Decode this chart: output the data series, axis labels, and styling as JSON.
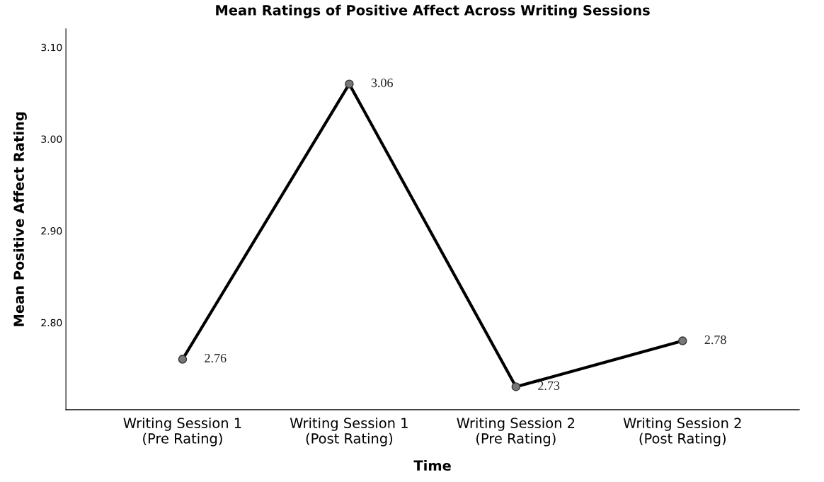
{
  "chart_data": {
    "type": "line",
    "title": "Mean Ratings of Positive Affect Across Writing Sessions",
    "xlabel": "Time",
    "ylabel": "Mean Positive Affect Rating",
    "categories": [
      "Writing Session 1\n(Pre Rating)",
      "Writing Session 1\n(Post Rating)",
      "Writing Session 2\n(Pre Rating)",
      "Writing Session 2\n(Post Rating)"
    ],
    "values": [
      2.76,
      3.06,
      2.73,
      2.78
    ],
    "color": "#000000",
    "marker": "circle",
    "line_style": "solid",
    "data_labels": true,
    "grid": false,
    "legend": false,
    "ylim": [
      2.705,
      3.12
    ],
    "yticks": [
      {
        "value": 2.8,
        "label": "2.80"
      },
      {
        "value": 2.9,
        "label": "2.90"
      },
      {
        "value": 3.0,
        "label": "3.00"
      },
      {
        "value": 3.1,
        "label": "3.10"
      }
    ]
  }
}
